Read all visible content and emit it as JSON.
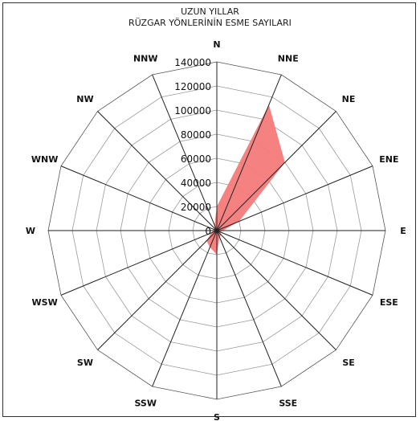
{
  "chart_data": {
    "type": "radar",
    "title": "UZUN YILLAR",
    "subtitle": "RÜZGAR YÖNLERİNİN ESME SAYILARI",
    "directions": [
      "N",
      "NNE",
      "NE",
      "ENE",
      "E",
      "ESE",
      "SE",
      "SSE",
      "S",
      "SSW",
      "SW",
      "WSW",
      "W",
      "WNW",
      "NW",
      "NNW"
    ],
    "radial_ticks": [
      "0",
      "20000",
      "40000",
      "60000",
      "80000",
      "100000",
      "120000",
      "140000"
    ],
    "tick_values": [
      0,
      20000,
      40000,
      60000,
      80000,
      100000,
      120000,
      140000
    ],
    "rlim": [
      0,
      140000
    ],
    "grid": true,
    "legend": "none",
    "series": [
      {
        "color": "#f47a7a",
        "values": [
          20000,
          113000,
          80000,
          20000,
          5000,
          3000,
          5000,
          6000,
          20000,
          15000,
          12000,
          5000,
          3000,
          2000,
          3000,
          5000
        ]
      }
    ]
  }
}
